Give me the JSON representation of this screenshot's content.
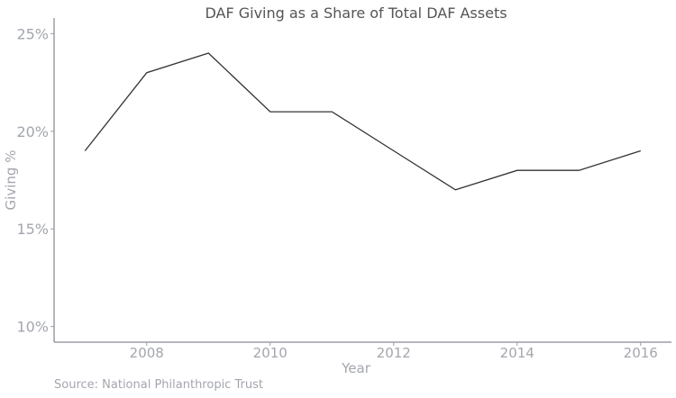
{
  "chart_data": {
    "type": "line",
    "title": "DAF Giving as a Share of Total DAF Assets",
    "xlabel": "Year",
    "ylabel": "Giving %",
    "caption": "Source: National Philanthropic Trust",
    "x": [
      2007,
      2008,
      2009,
      2010,
      2011,
      2012,
      2013,
      2014,
      2015,
      2016
    ],
    "series": [
      {
        "values": [
          19,
          23,
          24,
          21,
          21,
          19,
          17,
          18,
          18,
          19
        ]
      }
    ],
    "xlim": [
      2006.5,
      2016.5
    ],
    "ylim": [
      9.2,
      25.8
    ],
    "xticks": [
      2008,
      2010,
      2012,
      2014,
      2016
    ],
    "xtick_labels": [
      "2008",
      "2010",
      "2012",
      "2014",
      "2016"
    ],
    "yticks": [
      10,
      15,
      20,
      25
    ],
    "ytick_labels": [
      "10%",
      "15%",
      "20%",
      "25%"
    ],
    "grid": false,
    "line_color": "#333333",
    "axis_color": "#9a9ea6",
    "text_color": "#a3a6ad"
  }
}
